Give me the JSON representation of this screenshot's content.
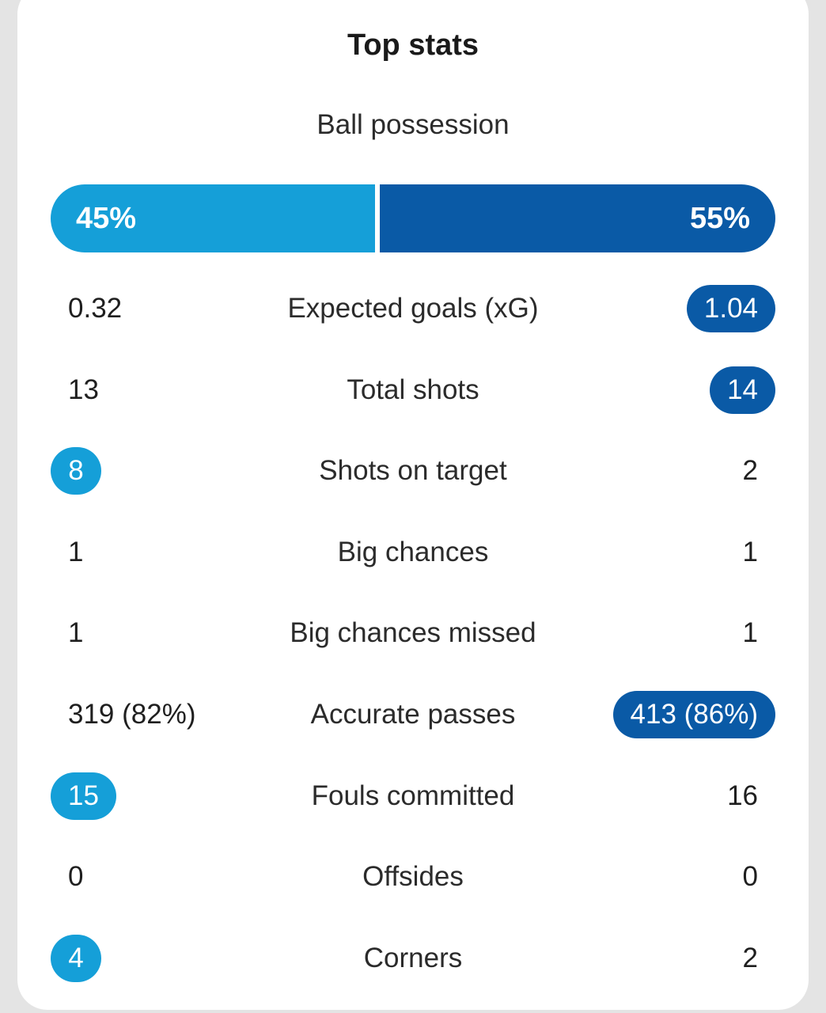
{
  "title": "Top stats",
  "possession": {
    "label": "Ball possession",
    "home": "45%",
    "away": "55%",
    "home_fraction": 0.45,
    "away_fraction": 0.55
  },
  "colors": {
    "home": "#159fd8",
    "away": "#0a5aa6"
  },
  "stats": [
    {
      "label": "Expected goals (xG)",
      "home": "0.32",
      "away": "1.04",
      "highlight": "away"
    },
    {
      "label": "Total shots",
      "home": "13",
      "away": "14",
      "highlight": "away"
    },
    {
      "label": "Shots on target",
      "home": "8",
      "away": "2",
      "highlight": "home"
    },
    {
      "label": "Big chances",
      "home": "1",
      "away": "1",
      "highlight": "none"
    },
    {
      "label": "Big chances missed",
      "home": "1",
      "away": "1",
      "highlight": "none"
    },
    {
      "label": "Accurate passes",
      "home": "319 (82%)",
      "away": "413 (86%)",
      "highlight": "away"
    },
    {
      "label": "Fouls committed",
      "home": "15",
      "away": "16",
      "highlight": "home"
    },
    {
      "label": "Offsides",
      "home": "0",
      "away": "0",
      "highlight": "none"
    },
    {
      "label": "Corners",
      "home": "4",
      "away": "2",
      "highlight": "home"
    }
  ]
}
